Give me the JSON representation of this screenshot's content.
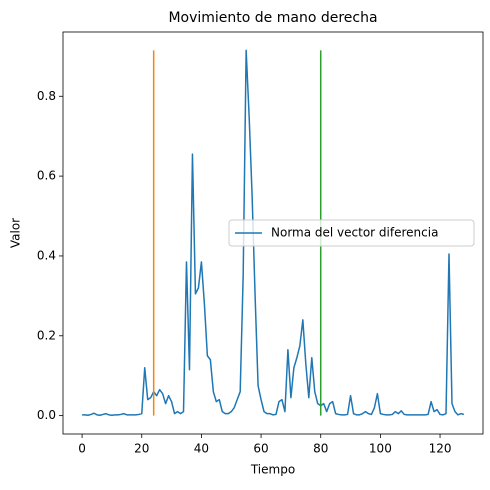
{
  "chart_data": {
    "type": "line",
    "title": "Movimiento de mano derecha",
    "xlabel": "Tiempo",
    "ylabel": "Valor",
    "x": [
      0,
      1,
      2,
      3,
      4,
      5,
      6,
      7,
      8,
      9,
      10,
      11,
      12,
      13,
      14,
      15,
      16,
      17,
      18,
      19,
      20,
      21,
      22,
      23,
      24,
      25,
      26,
      27,
      28,
      29,
      30,
      31,
      32,
      33,
      34,
      35,
      36,
      37,
      38,
      39,
      40,
      41,
      42,
      43,
      44,
      45,
      46,
      47,
      48,
      49,
      50,
      51,
      52,
      53,
      54,
      55,
      56,
      57,
      58,
      59,
      60,
      61,
      62,
      63,
      64,
      65,
      66,
      67,
      68,
      69,
      70,
      71,
      72,
      73,
      74,
      75,
      76,
      77,
      78,
      79,
      80,
      81,
      82,
      83,
      84,
      85,
      86,
      87,
      88,
      89,
      90,
      91,
      92,
      93,
      94,
      95,
      96,
      97,
      98,
      99,
      100,
      101,
      102,
      103,
      104,
      105,
      106,
      107,
      108,
      109,
      110,
      111,
      112,
      113,
      114,
      115,
      116,
      117,
      118,
      119,
      120,
      121,
      122,
      123,
      124,
      125,
      126,
      127,
      128
    ],
    "series": [
      {
        "name": "Norma del vector diferencia",
        "color": "#1f77b4",
        "values": [
          0.002,
          0.002,
          0.001,
          0.003,
          0.006,
          0.002,
          0.001,
          0.003,
          0.005,
          0.002,
          0.001,
          0.002,
          0.002,
          0.003,
          0.005,
          0.002,
          0.002,
          0.002,
          0.002,
          0.003,
          0.005,
          0.12,
          0.04,
          0.045,
          0.06,
          0.05,
          0.065,
          0.055,
          0.03,
          0.05,
          0.035,
          0.005,
          0.01,
          0.005,
          0.01,
          0.385,
          0.115,
          0.655,
          0.305,
          0.32,
          0.385,
          0.28,
          0.15,
          0.14,
          0.06,
          0.035,
          0.04,
          0.01,
          0.005,
          0.005,
          0.01,
          0.02,
          0.04,
          0.06,
          0.35,
          0.915,
          0.75,
          0.55,
          0.3,
          0.075,
          0.04,
          0.01,
          0.005,
          0.005,
          0.002,
          0.003,
          0.035,
          0.04,
          0.01,
          0.165,
          0.045,
          0.12,
          0.145,
          0.175,
          0.24,
          0.13,
          0.045,
          0.145,
          0.06,
          0.03,
          0.025,
          0.03,
          0.01,
          0.03,
          0.035,
          0.005,
          0.003,
          0.002,
          0.002,
          0.003,
          0.05,
          0.005,
          0.002,
          0.002,
          0.005,
          0.01,
          0.005,
          0.003,
          0.02,
          0.055,
          0.005,
          0.003,
          0.002,
          0.002,
          0.003,
          0.01,
          0.005,
          0.012,
          0.003,
          0.002,
          0.002,
          0.002,
          0.002,
          0.002,
          0.002,
          0.002,
          0.003,
          0.035,
          0.01,
          0.015,
          0.003,
          0.002,
          0.005,
          0.405,
          0.03,
          0.01,
          0.002,
          0.005,
          0.003
        ]
      }
    ],
    "vlines": [
      {
        "x": 24,
        "ymin": 0,
        "ymax": 0.915,
        "color": "#ff7f0e"
      },
      {
        "x": 80,
        "ymin": 0,
        "ymax": 0.915,
        "color": "#2ca02c"
      }
    ],
    "xlim": [
      -6.4,
      134.4
    ],
    "ylim": [
      -0.046,
      0.961
    ],
    "xticks": [
      0,
      20,
      40,
      60,
      80,
      100,
      120
    ],
    "yticks": [
      {
        "value": 0,
        "label": "0.0"
      },
      0.2,
      0.4,
      0.6,
      0.8
    ],
    "legend": "center right"
  }
}
